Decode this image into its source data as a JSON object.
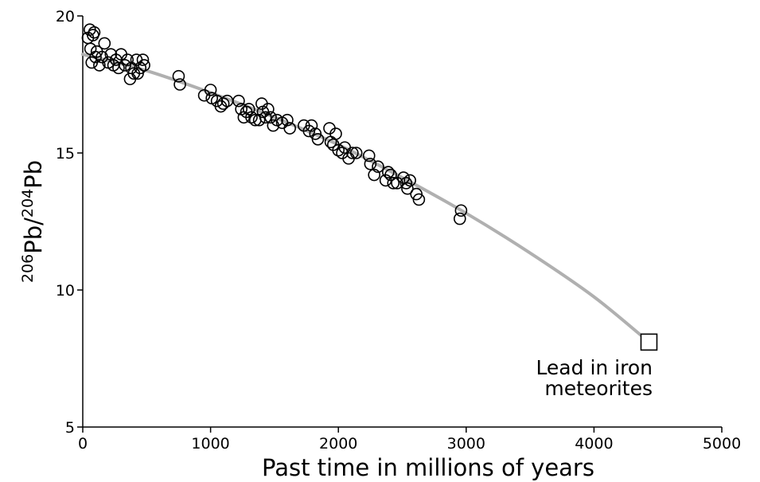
{
  "chart_data": {
    "type": "scatter",
    "xlabel": "Past time in millions of years",
    "ylabel_base": "Pb/",
    "ylabel_parts": {
      "sup1": "206",
      "mid": "Pb/",
      "sup2": "204",
      "end": "Pb"
    },
    "xlim": [
      0,
      5000
    ],
    "ylim": [
      5,
      20
    ],
    "x_ticks": [
      0,
      1000,
      2000,
      3000,
      4000,
      5000
    ],
    "x_tick_labels": [
      "0",
      "1000",
      "2000",
      "3000",
      "4000",
      "5000"
    ],
    "y_ticks": [
      5,
      10,
      15,
      20
    ],
    "y_tick_labels": [
      "5",
      "10",
      "15",
      "20"
    ],
    "grid": false,
    "series": [
      {
        "marker": "circle",
        "x": [
          40,
          55,
          60,
          70,
          80,
          90,
          100,
          110,
          130,
          150,
          170,
          200,
          220,
          240,
          260,
          280,
          300,
          330,
          350,
          370,
          380,
          400,
          420,
          430,
          450,
          470,
          480,
          750,
          760,
          950,
          1000,
          1010,
          1050,
          1080,
          1100,
          1130,
          1220,
          1240,
          1260,
          1280,
          1300,
          1320,
          1350,
          1380,
          1400,
          1410,
          1430,
          1450,
          1470,
          1490,
          1520,
          1560,
          1600,
          1620,
          1730,
          1770,
          1790,
          1820,
          1840,
          1930,
          1940,
          1960,
          1980,
          2000,
          2030,
          2050,
          2080,
          2110,
          2140,
          2240,
          2250,
          2280,
          2310,
          2370,
          2390,
          2410,
          2430,
          2460,
          2510,
          2530,
          2540,
          2560,
          2610,
          2630,
          2950,
          2960
        ],
        "y": [
          19.2,
          19.5,
          18.8,
          18.3,
          19.3,
          19.4,
          18.5,
          18.7,
          18.2,
          18.5,
          19.0,
          18.3,
          18.6,
          18.2,
          18.4,
          18.1,
          18.6,
          18.2,
          18.4,
          17.7,
          18.1,
          17.9,
          18.4,
          17.9,
          18.1,
          18.4,
          18.2,
          17.8,
          17.5,
          17.1,
          17.3,
          17.0,
          16.9,
          16.7,
          16.8,
          16.9,
          16.9,
          16.6,
          16.3,
          16.5,
          16.6,
          16.3,
          16.2,
          16.2,
          16.8,
          16.5,
          16.3,
          16.6,
          16.3,
          16.0,
          16.2,
          16.1,
          16.2,
          15.9,
          16.0,
          15.8,
          16.0,
          15.7,
          15.5,
          15.9,
          15.4,
          15.3,
          15.7,
          15.1,
          15.0,
          15.2,
          14.8,
          15.0,
          15.0,
          14.9,
          14.6,
          14.2,
          14.5,
          14.0,
          14.3,
          14.2,
          13.9,
          13.9,
          14.1,
          13.9,
          13.7,
          14.0,
          13.5,
          13.3,
          12.6,
          12.9
        ]
      },
      {
        "name": "Lead in iron meteorites",
        "marker": "square",
        "x": [
          4430
        ],
        "y": [
          8.1
        ]
      }
    ],
    "curve": {
      "x": [
        0,
        500,
        1000,
        1500,
        2000,
        2500,
        3000,
        3500,
        4000,
        4430
      ],
      "y": [
        18.6,
        18.0,
        17.2,
        16.3,
        15.3,
        14.1,
        12.8,
        11.35,
        9.75,
        8.1
      ],
      "color": "#b0b0b0"
    },
    "annotations": [
      {
        "text_line1": "Lead in iron",
        "text_line2": "meteorites"
      }
    ]
  }
}
